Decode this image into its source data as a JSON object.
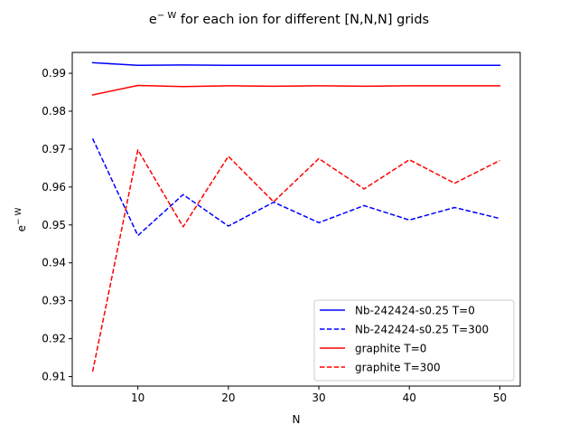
{
  "chart_data": {
    "type": "line",
    "title": {
      "prefix": "e",
      "superscript": "− W",
      "suffix": " for each ion for different [N,N,N] grids"
    },
    "xlabel": "N",
    "ylabel": {
      "base": "e",
      "superscript": "− W"
    },
    "xlim": [
      2.75,
      52.25
    ],
    "ylim": [
      0.9075,
      0.9955
    ],
    "xticks": [
      10,
      20,
      30,
      40,
      50
    ],
    "yticks": [
      0.91,
      0.92,
      0.93,
      0.94,
      0.95,
      0.96,
      0.97,
      0.98,
      0.99
    ],
    "x": [
      5,
      10,
      15,
      20,
      25,
      30,
      35,
      40,
      45,
      50
    ],
    "grid": false,
    "legend_position": "lower-right",
    "series": [
      {
        "name": "Nb-242424-s0.25 T=0",
        "color": "#0000ff",
        "dash": "solid",
        "values": [
          0.9928,
          0.9921,
          0.9922,
          0.9921,
          0.9921,
          0.9921,
          0.9921,
          0.9921,
          0.9921,
          0.9921
        ]
      },
      {
        "name": "Nb-242424-s0.25 T=300",
        "color": "#0000ff",
        "dash": "dashed",
        "values": [
          0.9728,
          0.9472,
          0.958,
          0.9497,
          0.956,
          0.9506,
          0.9551,
          0.9513,
          0.9546,
          0.9517
        ]
      },
      {
        "name": "graphite T=0",
        "color": "#ff0000",
        "dash": "solid",
        "values": [
          0.9843,
          0.9868,
          0.9865,
          0.9867,
          0.9866,
          0.9867,
          0.9866,
          0.9867,
          0.9867,
          0.9867
        ]
      },
      {
        "name": "graphite T=300",
        "color": "#ff0000",
        "dash": "dashed",
        "values": [
          0.9113,
          0.9698,
          0.9495,
          0.9681,
          0.9561,
          0.9675,
          0.9595,
          0.9672,
          0.961,
          0.967
        ]
      }
    ]
  }
}
